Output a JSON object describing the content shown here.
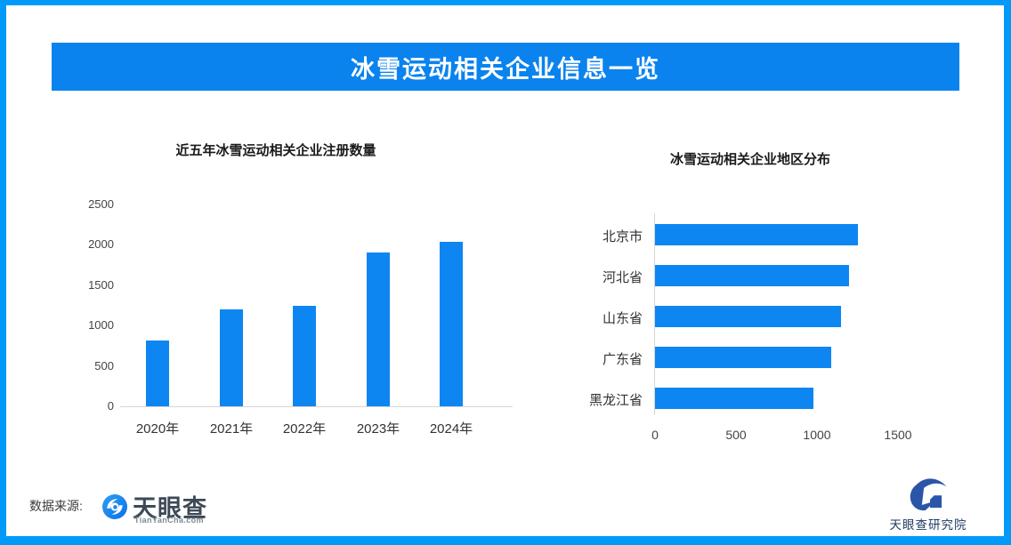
{
  "page": {
    "background": "#ffffff",
    "border_color": "#019af9"
  },
  "header": {
    "title": "冰雪运动相关企业信息一览",
    "background": "#0a83ee",
    "text_color": "#ffffff"
  },
  "chart_data": [
    {
      "type": "bar",
      "orientation": "vertical",
      "title": "近五年冰雪运动相关企业注册数量",
      "categories": [
        "2020年",
        "2021年",
        "2022年",
        "2023年",
        "2024年"
      ],
      "values": [
        820,
        1200,
        1250,
        1900,
        2040
      ],
      "yticks": [
        0,
        500,
        1000,
        1500,
        2000,
        2500
      ],
      "ylim": [
        0,
        2500
      ],
      "xlabel": "",
      "ylabel": "",
      "grid": false,
      "legend": false,
      "bar_color": "#0e86f2"
    },
    {
      "type": "bar",
      "orientation": "horizontal",
      "title": "冰雪运动相关企业地区分布",
      "categories": [
        "北京市",
        "河北省",
        "山东省",
        "广东省",
        "黑龙江省"
      ],
      "values": [
        1250,
        1200,
        1150,
        1090,
        980
      ],
      "xticks": [
        0,
        500,
        1000,
        1500
      ],
      "xlim": [
        0,
        1840
      ],
      "xlabel": "",
      "ylabel": "",
      "grid": false,
      "legend": false,
      "bar_color": "#0e86f2"
    }
  ],
  "footer": {
    "source_label": "数据来源:",
    "tyc_logo": {
      "name": "天眼查",
      "subtext": "TianYanCha.com",
      "icon": "tianyancha-eye-icon",
      "icon_color": "#1386f0"
    },
    "research_logo": {
      "name": "天眼查研究院",
      "icon": "tianyancha-research-icon",
      "icon_color": "#2b55a8",
      "text_color": "#1e3a5f"
    }
  },
  "colors": {
    "accent_blue": "#0e86f2",
    "banner_blue": "#0a83ee",
    "border_blue": "#019af9",
    "axis_gray": "#d6d6d6"
  }
}
